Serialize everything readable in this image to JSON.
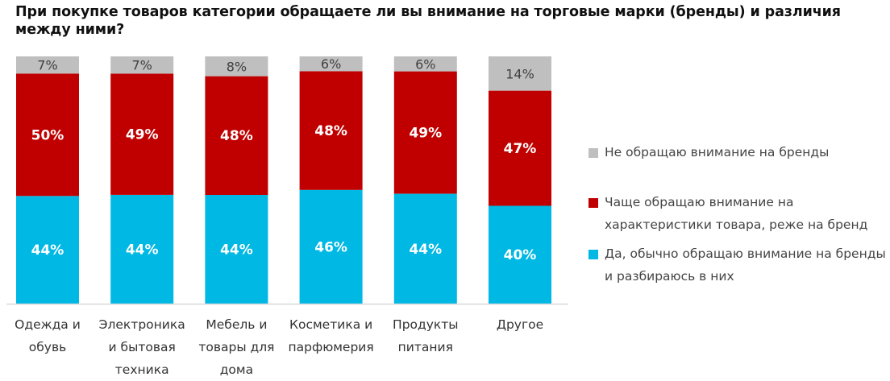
{
  "chart_data": {
    "type": "bar",
    "stacked": true,
    "title": "При покупке товаров категории обращаете ли вы внимание на торговые марки (бренды) и различия между ними?",
    "categories": [
      [
        "Одежда и",
        "обувь"
      ],
      [
        "Электроника",
        "и бытовая",
        "техника"
      ],
      [
        "Мебель и",
        "товары для",
        "дома"
      ],
      [
        "Косметика и",
        "парфюмерия"
      ],
      [
        "Продукты",
        "питания"
      ],
      [
        "Другое"
      ]
    ],
    "series": [
      {
        "name": "Да, обычно обращаю внимание на бренды и разбираюсь в них",
        "legend_lines": [
          "Да, обычно обращаю внимание на бренды",
          "и разбираюсь в них"
        ],
        "color": "#00B8E4",
        "label_color": "#ffffff",
        "values": [
          44,
          44,
          44,
          46,
          44,
          40
        ],
        "labels": [
          "44%",
          "44%",
          "44%",
          "46%",
          "44%",
          "40%"
        ]
      },
      {
        "name": "Чаще обращаю внимание на характеристики товара, реже на бренд",
        "legend_lines": [
          "Чаще обращаю внимание на",
          "характеристики товара, реже на бренд"
        ],
        "color": "#C00000",
        "label_color": "#ffffff",
        "values": [
          50,
          49,
          48,
          48,
          49,
          47
        ],
        "labels": [
          "50%",
          "49%",
          "48%",
          "48%",
          "49%",
          "47%"
        ]
      },
      {
        "name": "Не обращаю внимание на бренды",
        "legend_lines": [
          "Не обращаю внимание на бренды"
        ],
        "color": "#BFBFBF",
        "label_color": "#404040",
        "values": [
          7,
          7,
          8,
          6,
          6,
          14
        ],
        "labels": [
          "7%",
          "7%",
          "8%",
          "6%",
          "6%",
          "14%"
        ]
      }
    ],
    "xlabel": "",
    "ylabel": "",
    "ylim": [
      0,
      100
    ],
    "grid": false,
    "legend_position": "right",
    "axis_color": "#D9D9D9"
  }
}
